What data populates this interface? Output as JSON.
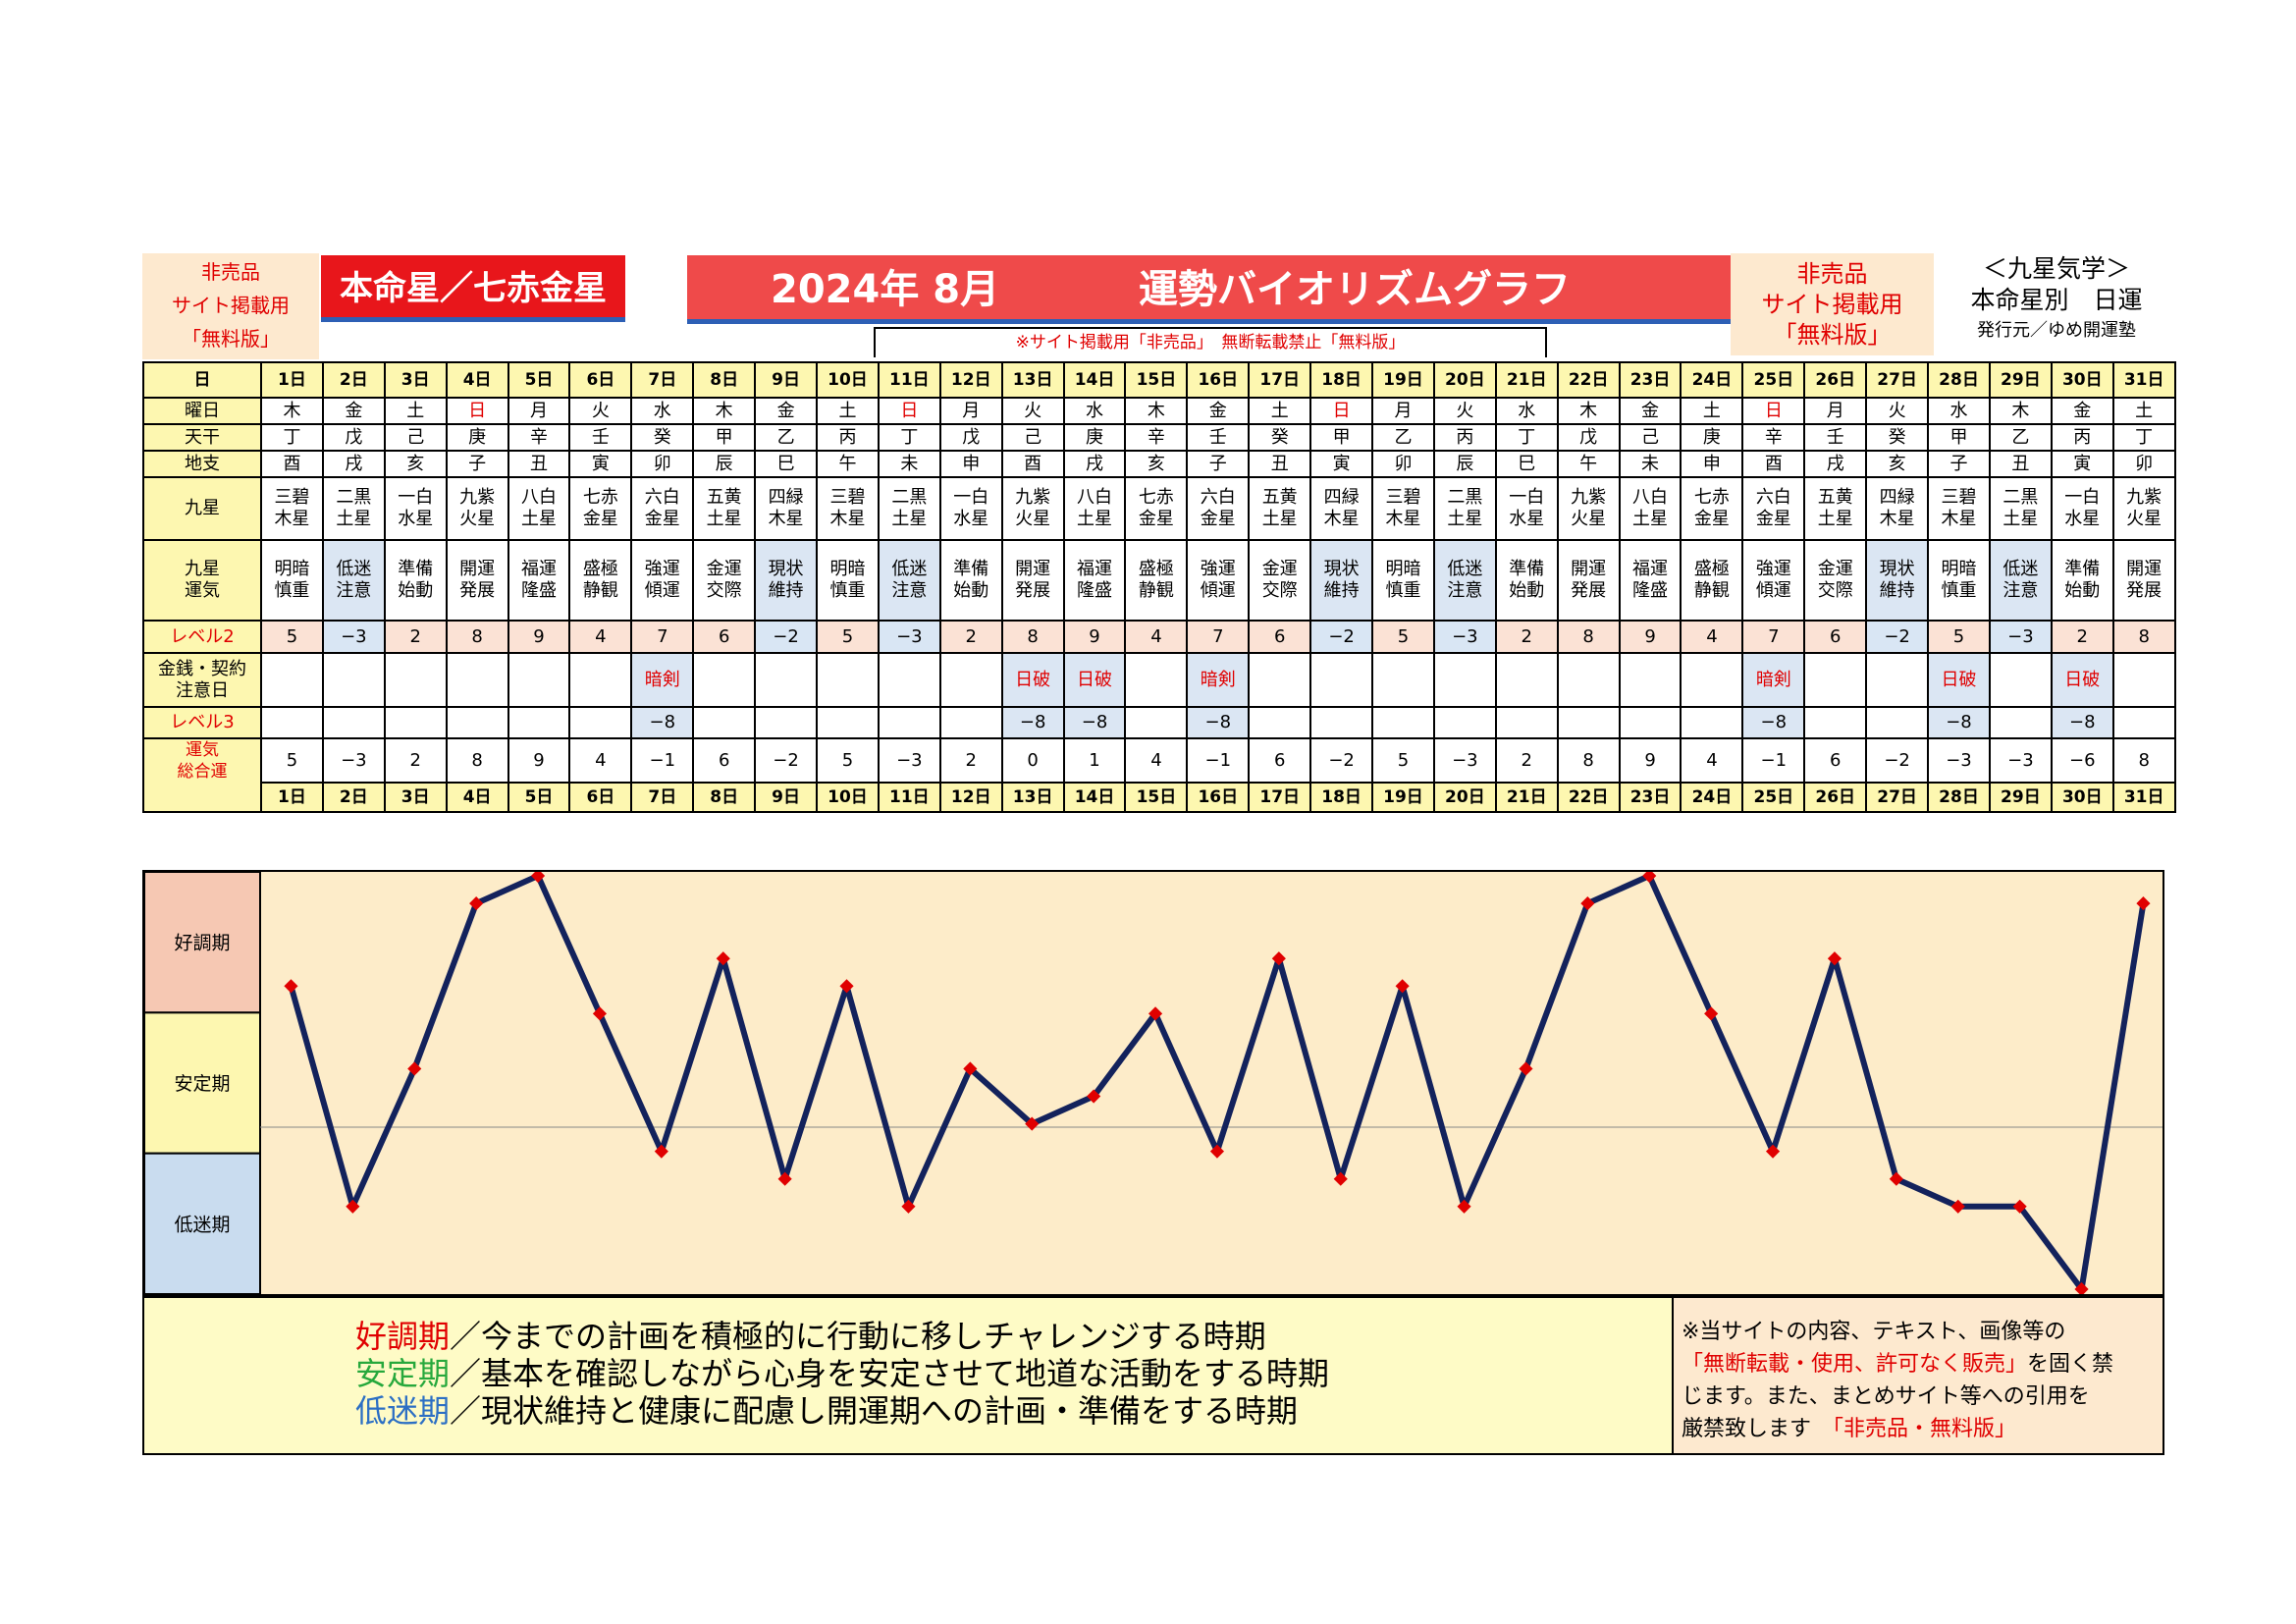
{
  "header": {
    "notice_left": [
      "非売品",
      "サイト掲載用",
      "「無料版」"
    ],
    "honmei_label": "本命星／七赤金星",
    "title_month": "2024年 8月",
    "title_main": "運勢バイオリズムグラフ",
    "notice_right": [
      "非売品",
      "サイト掲載用",
      "「無料版」"
    ],
    "kyusei_title": "＜九星気学＞",
    "kyusei_sub": "本命星別　日運",
    "publisher": "発行元／ゆめ開運塾",
    "site_notice": "※サイト掲載用「非売品」　無断転載禁止「無料版」"
  },
  "row_labels": {
    "day": "日",
    "weekday": "曜日",
    "tenkan": "天干",
    "chishi": "地支",
    "kyusei": [
      "九星"
    ],
    "kyusei_unki": [
      "九星",
      "運気"
    ],
    "level2": "レベル2",
    "kinsen": [
      "金銭・契約",
      "注意日"
    ],
    "level3": "レベル3",
    "total": [
      "運気",
      "総合運"
    ]
  },
  "days": [
    "1日",
    "2日",
    "3日",
    "4日",
    "5日",
    "6日",
    "7日",
    "8日",
    "9日",
    "10日",
    "11日",
    "12日",
    "13日",
    "14日",
    "15日",
    "16日",
    "17日",
    "18日",
    "19日",
    "20日",
    "21日",
    "22日",
    "23日",
    "24日",
    "25日",
    "26日",
    "27日",
    "28日",
    "29日",
    "30日",
    "31日"
  ],
  "weekdays": [
    "木",
    "金",
    "土",
    "日",
    "月",
    "火",
    "水",
    "木",
    "金",
    "土",
    "日",
    "月",
    "火",
    "水",
    "木",
    "金",
    "土",
    "日",
    "月",
    "火",
    "水",
    "木",
    "金",
    "土",
    "日",
    "月",
    "火",
    "水",
    "木",
    "金",
    "土"
  ],
  "tenkan": [
    "丁",
    "戊",
    "己",
    "庚",
    "辛",
    "壬",
    "癸",
    "甲",
    "乙",
    "丙",
    "丁",
    "戊",
    "己",
    "庚",
    "辛",
    "壬",
    "癸",
    "甲",
    "乙",
    "丙",
    "丁",
    "戊",
    "己",
    "庚",
    "辛",
    "壬",
    "癸",
    "甲",
    "乙",
    "丙",
    "丁"
  ],
  "chishi": [
    "酉",
    "戌",
    "亥",
    "子",
    "丑",
    "寅",
    "卯",
    "辰",
    "巳",
    "午",
    "未",
    "申",
    "酉",
    "戌",
    "亥",
    "子",
    "丑",
    "寅",
    "卯",
    "辰",
    "巳",
    "午",
    "未",
    "申",
    "酉",
    "戌",
    "亥",
    "子",
    "丑",
    "寅",
    "卯"
  ],
  "kyusei": [
    [
      "三碧",
      "木星"
    ],
    [
      "二黒",
      "土星"
    ],
    [
      "一白",
      "水星"
    ],
    [
      "九紫",
      "火星"
    ],
    [
      "八白",
      "土星"
    ],
    [
      "七赤",
      "金星"
    ],
    [
      "六白",
      "金星"
    ],
    [
      "五黄",
      "土星"
    ],
    [
      "四緑",
      "木星"
    ],
    [
      "三碧",
      "木星"
    ],
    [
      "二黒",
      "土星"
    ],
    [
      "一白",
      "水星"
    ],
    [
      "九紫",
      "火星"
    ],
    [
      "八白",
      "土星"
    ],
    [
      "七赤",
      "金星"
    ],
    [
      "六白",
      "金星"
    ],
    [
      "五黄",
      "土星"
    ],
    [
      "四緑",
      "木星"
    ],
    [
      "三碧",
      "木星"
    ],
    [
      "二黒",
      "土星"
    ],
    [
      "一白",
      "水星"
    ],
    [
      "九紫",
      "火星"
    ],
    [
      "八白",
      "土星"
    ],
    [
      "七赤",
      "金星"
    ],
    [
      "六白",
      "金星"
    ],
    [
      "五黄",
      "土星"
    ],
    [
      "四緑",
      "木星"
    ],
    [
      "三碧",
      "木星"
    ],
    [
      "二黒",
      "土星"
    ],
    [
      "一白",
      "水星"
    ],
    [
      "九紫",
      "火星"
    ]
  ],
  "unki": [
    [
      "明暗",
      "慎重"
    ],
    [
      "低迷",
      "注意"
    ],
    [
      "準備",
      "始動"
    ],
    [
      "開運",
      "発展"
    ],
    [
      "福運",
      "隆盛"
    ],
    [
      "盛極",
      "静観"
    ],
    [
      "強運",
      "傾運"
    ],
    [
      "金運",
      "交際"
    ],
    [
      "現状",
      "維持"
    ],
    [
      "明暗",
      "慎重"
    ],
    [
      "低迷",
      "注意"
    ],
    [
      "準備",
      "始動"
    ],
    [
      "開運",
      "発展"
    ],
    [
      "福運",
      "隆盛"
    ],
    [
      "盛極",
      "静観"
    ],
    [
      "強運",
      "傾運"
    ],
    [
      "金運",
      "交際"
    ],
    [
      "現状",
      "維持"
    ],
    [
      "明暗",
      "慎重"
    ],
    [
      "低迷",
      "注意"
    ],
    [
      "準備",
      "始動"
    ],
    [
      "開運",
      "発展"
    ],
    [
      "福運",
      "隆盛"
    ],
    [
      "盛極",
      "静観"
    ],
    [
      "強運",
      "傾運"
    ],
    [
      "金運",
      "交際"
    ],
    [
      "現状",
      "維持"
    ],
    [
      "明暗",
      "慎重"
    ],
    [
      "低迷",
      "注意"
    ],
    [
      "準備",
      "始動"
    ],
    [
      "開運",
      "発展"
    ]
  ],
  "level2": [
    "5",
    "−3",
    "2",
    "8",
    "9",
    "4",
    "7",
    "6",
    "−2",
    "5",
    "−3",
    "2",
    "8",
    "9",
    "4",
    "7",
    "6",
    "−2",
    "5",
    "−3",
    "2",
    "8",
    "9",
    "4",
    "7",
    "6",
    "−2",
    "5",
    "−3",
    "2",
    "8"
  ],
  "kinsen": [
    "",
    "",
    "",
    "",
    "",
    "",
    "暗剣",
    "",
    "",
    "",
    "",
    "",
    "日破",
    "日破",
    "",
    "暗剣",
    "",
    "",
    "",
    "",
    "",
    "",
    "",
    "",
    "暗剣",
    "",
    "",
    "日破",
    "",
    "日破",
    ""
  ],
  "level3": [
    "",
    "",
    "",
    "",
    "",
    "",
    "−8",
    "",
    "",
    "",
    "",
    "",
    "−8",
    "−8",
    "",
    "−8",
    "",
    "",
    "",
    "",
    "",
    "",
    "",
    "",
    "−8",
    "",
    "",
    "−8",
    "",
    "−8",
    ""
  ],
  "total_text": [
    "5",
    "−3",
    "2",
    "8",
    "9",
    "4",
    "−1",
    "6",
    "−2",
    "5",
    "−3",
    "2",
    "0",
    "1",
    "4",
    "−1",
    "6",
    "−2",
    "5",
    "−3",
    "2",
    "8",
    "9",
    "4",
    "−1",
    "6",
    "−2",
    "−3",
    "−3",
    "−6",
    "8"
  ],
  "chart_data": {
    "type": "line",
    "x": [
      "1日",
      "2日",
      "3日",
      "4日",
      "5日",
      "6日",
      "7日",
      "8日",
      "9日",
      "10日",
      "11日",
      "12日",
      "13日",
      "14日",
      "15日",
      "16日",
      "17日",
      "18日",
      "19日",
      "20日",
      "21日",
      "22日",
      "23日",
      "24日",
      "25日",
      "26日",
      "27日",
      "28日",
      "29日",
      "30日",
      "31日"
    ],
    "series": [
      {
        "values": [
          5,
          -3,
          2,
          8,
          9,
          4,
          -1,
          6,
          -2,
          5,
          -3,
          2,
          0,
          1,
          4,
          -1,
          6,
          -2,
          5,
          -3,
          2,
          8,
          9,
          4,
          -1,
          6,
          -2,
          -3,
          -3,
          -6,
          8
        ]
      }
    ],
    "ylim": [
      -6,
      9
    ],
    "bands": [
      "好調期",
      "安定期",
      "低迷期"
    ],
    "line_color": "#13225c",
    "marker_color": "#e00000"
  },
  "legend": {
    "good_term": "好調期",
    "good_text": "／今までの計画を積極的に行動に移しチャレンジする時期",
    "stable_term": "安定期",
    "stable_text": "／基本を確認しながら心身を安定させて地道な活動をする時期",
    "low_term": "低迷期",
    "low_text": "／現状維持と健康に配慮し開運期への計画・準備をする時期"
  },
  "copyright": {
    "line1": "※当サイトの内容、テキスト、画像等の",
    "line2_red": "「無断転載・使用、許可なく販売」",
    "line2_tail": "を固く禁",
    "line3": "じます。また、まとめサイト等への引用を",
    "line4": "厳禁致します",
    "line4_red": "「非売品・無料版」"
  }
}
